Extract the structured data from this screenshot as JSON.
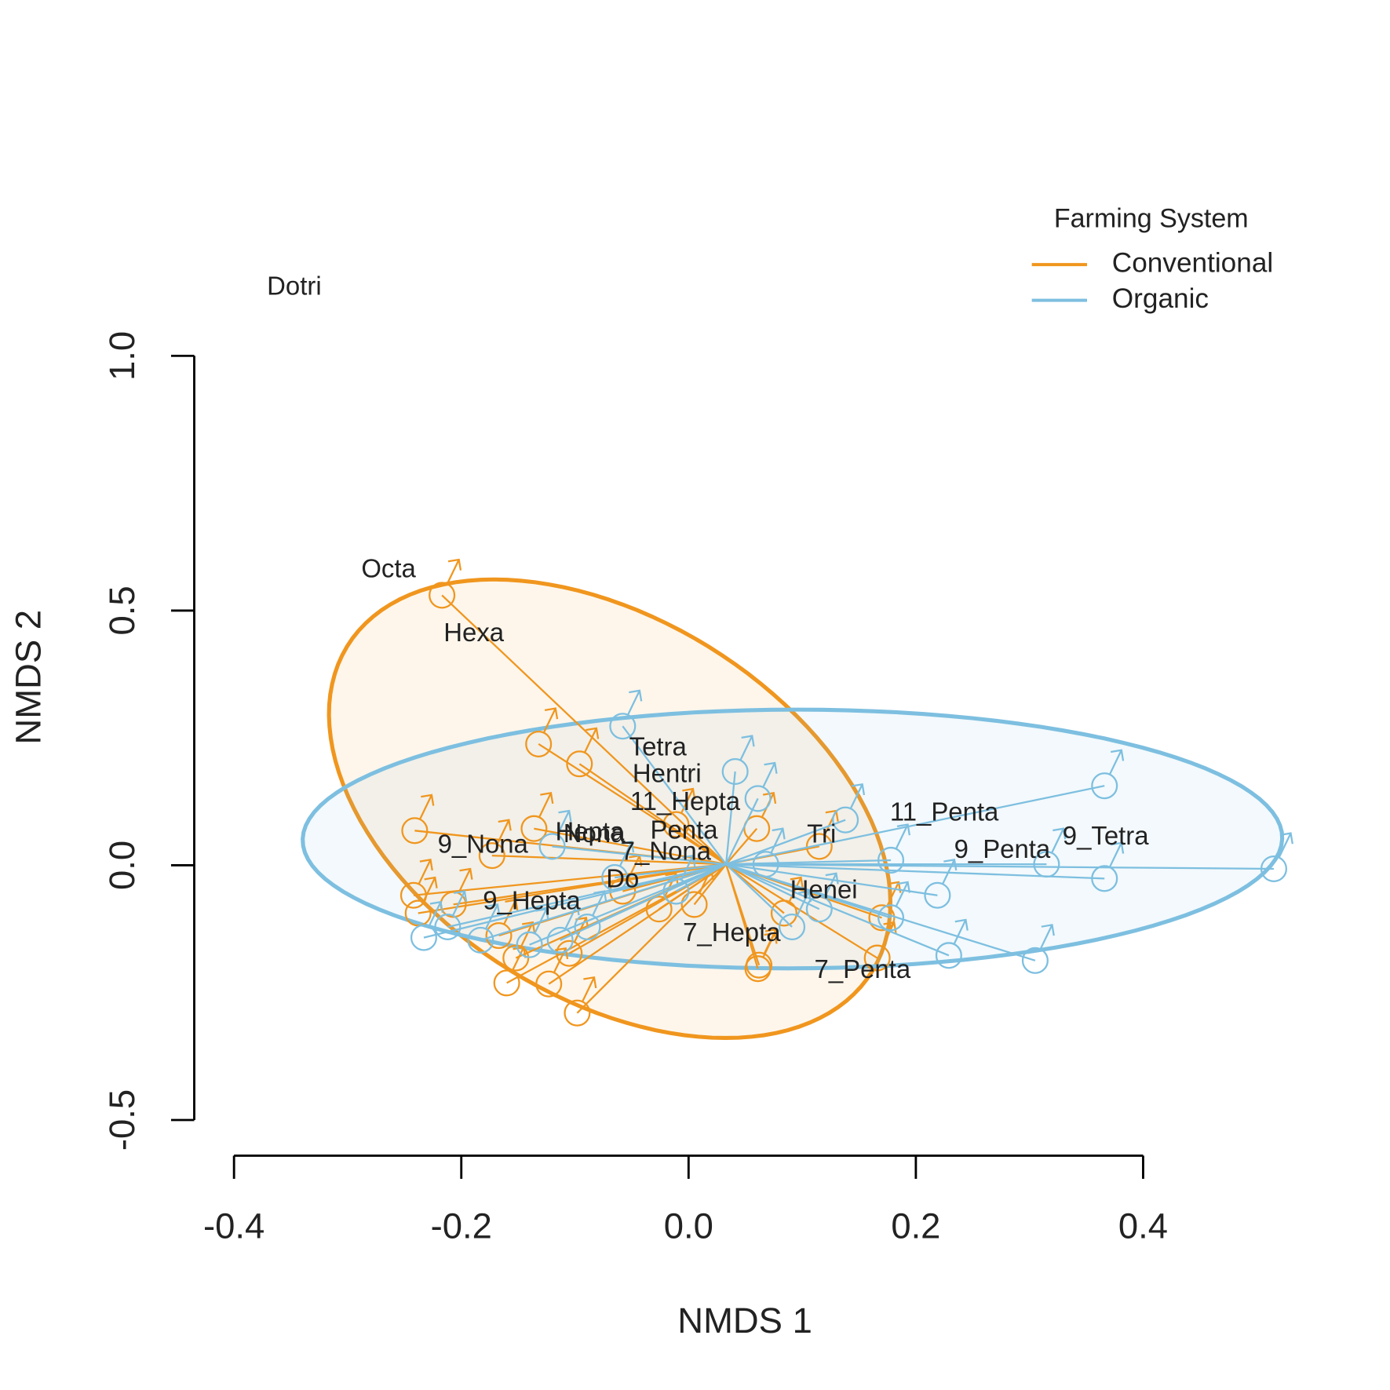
{
  "chart_data": {
    "type": "ordination",
    "x_label": "NMDS 1",
    "y_label": "NMDS 2",
    "xlim": [
      -0.435,
      0.56
    ],
    "ylim": [
      -0.57,
      1.2
    ],
    "xticks": [
      -0.4,
      -0.2,
      {
        "value": 0,
        "label": "0.0"
      },
      0.2,
      0.4
    ],
    "yticks": [
      -0.5,
      {
        "value": 0,
        "label": "0.0"
      },
      0.5,
      {
        "value": 1,
        "label": "1.0"
      }
    ],
    "legend_title": "Farming System",
    "legend_position": "top-right",
    "arrow_origin": [
      0.033,
      0.002
    ],
    "series": [
      {
        "name": "Conventional",
        "color": "#f0961e",
        "x": [
          -0.217,
          -0.132,
          -0.096,
          -0.241,
          -0.242,
          -0.207,
          -0.238,
          -0.16,
          -0.123,
          -0.098,
          0.062,
          0.061,
          0.166,
          0.17,
          -0.173,
          -0.136,
          -0.026,
          0.005,
          -0.058,
          0.084,
          -0.011,
          0.06,
          0.115,
          -0.167,
          -0.105,
          -0.152
        ],
        "y": [
          0.53,
          0.238,
          0.199,
          0.068,
          -0.059,
          -0.077,
          -0.094,
          -0.231,
          -0.233,
          -0.29,
          -0.196,
          -0.203,
          -0.182,
          -0.103,
          0.019,
          0.072,
          -0.086,
          -0.077,
          -0.051,
          -0.094,
          0.08,
          0.072,
          0.037,
          -0.138,
          -0.173,
          -0.182
        ],
        "ellipse": {
          "center": [
            -0.0694,
            0.111
          ],
          "a": [
            -0.102,
            0.45
          ],
          "b": [
            0.225,
            0
          ]
        }
      },
      {
        "name": "Organic",
        "color": "#7dbfe0",
        "x": [
          -0.233,
          -0.212,
          -0.183,
          -0.14,
          -0.058,
          0.041,
          0.061,
          0.366,
          0.515,
          0.366,
          0.315,
          0.305,
          0.229,
          0.219,
          0.178,
          0.138,
          0.115,
          0.178,
          0.091,
          -0.011,
          -0.089,
          -0.113,
          -0.12,
          -0.065,
          0.068
        ],
        "y": [
          -0.142,
          -0.121,
          -0.147,
          -0.156,
          0.273,
          0.184,
          0.131,
          0.156,
          -0.007,
          -0.026,
          0.002,
          -0.187,
          -0.177,
          -0.059,
          0.01,
          0.089,
          -0.086,
          -0.103,
          -0.121,
          -0.051,
          -0.121,
          -0.147,
          0.037,
          -0.024,
          0.002
        ],
        "ellipse": {
          "center": [
            0.0914,
            0.0516
          ],
          "a": [
            0.0039,
            0.254
          ],
          "b": [
            0.431,
            0
          ]
        }
      }
    ],
    "species": [
      {
        "name": "Dotri",
        "x": -0.347,
        "y": 1.133
      },
      {
        "name": "Octa",
        "x": -0.264,
        "y": 0.579
      },
      {
        "name": "Hexa",
        "x": -0.189,
        "y": 0.453
      },
      {
        "name": "Tetra",
        "x": -0.027,
        "y": 0.229
      },
      {
        "name": "Hentri",
        "x": -0.019,
        "y": 0.177
      },
      {
        "name": "11_Hepta",
        "x": -0.003,
        "y": 0.122
      },
      {
        "name": "11_Penta",
        "x": 0.225,
        "y": 0.101
      },
      {
        "name": "Tri",
        "x": 0.117,
        "y": 0.058
      },
      {
        "name": "9_Tetra",
        "x": 0.367,
        "y": 0.054
      },
      {
        "name": "9_Penta",
        "x": 0.276,
        "y": 0.028
      },
      {
        "name": "Hepta",
        "x": -0.087,
        "y": 0.063
      },
      {
        "name": "Nona",
        "x": -0.083,
        "y": 0.059
      },
      {
        "name": "Penta",
        "x": -0.004,
        "y": 0.066
      },
      {
        "name": "7_Nona",
        "x": -0.02,
        "y": 0.024
      },
      {
        "name": "9_Nona",
        "x": -0.181,
        "y": 0.038
      },
      {
        "name": "Do",
        "x": -0.058,
        "y": -0.03
      },
      {
        "name": "Henei",
        "x": 0.119,
        "y": -0.051
      },
      {
        "name": "9_Hepta",
        "x": -0.138,
        "y": -0.073
      },
      {
        "name": "7_Hepta",
        "x": 0.038,
        "y": -0.135
      },
      {
        "name": "7_Penta",
        "x": 0.153,
        "y": -0.208
      }
    ]
  }
}
